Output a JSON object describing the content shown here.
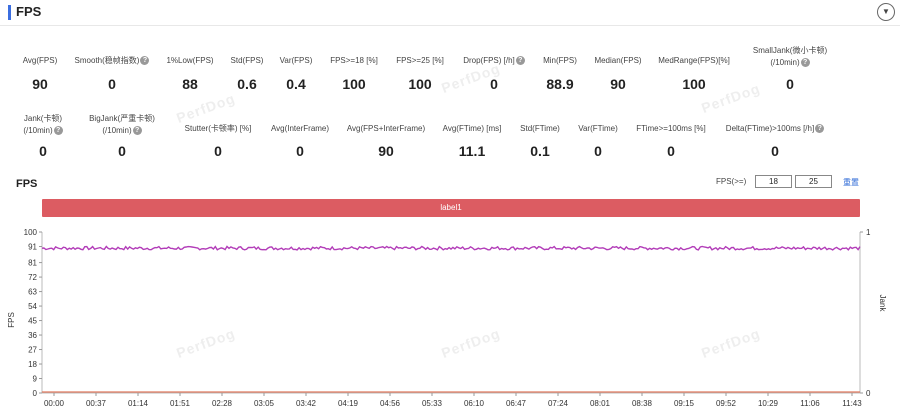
{
  "header": {
    "title": "FPS",
    "collapse_icon": "chevron-down-icon"
  },
  "stats_row1": [
    {
      "label": "Avg(FPS)",
      "value": "90",
      "help": false
    },
    {
      "label": "Smooth(稳帧指数)",
      "value": "0",
      "help": true
    },
    {
      "label": "1%Low(FPS)",
      "value": "88",
      "help": false
    },
    {
      "label": "Std(FPS)",
      "value": "0.6",
      "help": false
    },
    {
      "label": "Var(FPS)",
      "value": "0.4",
      "help": false
    },
    {
      "label": "FPS>=18 [%]",
      "value": "100",
      "help": false
    },
    {
      "label": "FPS>=25 [%]",
      "value": "100",
      "help": false
    },
    {
      "label": "Drop(FPS) [/h]",
      "value": "0",
      "help": true
    },
    {
      "label": "Min(FPS)",
      "value": "88.9",
      "help": false
    },
    {
      "label": "Median(FPS)",
      "value": "90",
      "help": false
    },
    {
      "label": "MedRange(FPS)[%]",
      "value": "100",
      "help": false
    },
    {
      "label": "SmallJank(微小卡顿)",
      "label2": "(/10min)",
      "value": "0",
      "help": true
    }
  ],
  "stats_row2": [
    {
      "label": "Jank(卡顿)",
      "label2": "(/10min)",
      "value": "0",
      "help": true
    },
    {
      "label": "BigJank(严重卡顿)",
      "label2": "(/10min)",
      "value": "0",
      "help": true
    },
    {
      "label": "Stutter(卡顿率) [%]",
      "value": "0",
      "help": false
    },
    {
      "label": "Avg(InterFrame)",
      "value": "0",
      "help": false
    },
    {
      "label": "Avg(FPS+InterFrame)",
      "value": "90",
      "help": false
    },
    {
      "label": "Avg(FTime) [ms]",
      "value": "11.1",
      "help": false
    },
    {
      "label": "Std(FTime)",
      "value": "0.1",
      "help": false
    },
    {
      "label": "Var(FTime)",
      "value": "0",
      "help": false
    },
    {
      "label": "FTime>=100ms [%]",
      "value": "0",
      "help": false
    },
    {
      "label": "Delta(FTime)>100ms [/h]",
      "value": "0",
      "help": true
    }
  ],
  "watermark": "PerfDog",
  "chart_section": {
    "title": "FPS",
    "filter_label": "FPS(>=)",
    "filter_value_1": "18",
    "filter_value_2": "25",
    "reset_label": "重置",
    "label_bar": "label1"
  },
  "chart_data": {
    "type": "line",
    "ylabel": "FPS",
    "y2label": "Jank",
    "y_ticks": [
      "100",
      "91",
      "81",
      "72",
      "63",
      "54",
      "45",
      "36",
      "27",
      "18",
      "9",
      "0"
    ],
    "y2_ticks": [
      "1",
      "0"
    ],
    "ylim": [
      0,
      100
    ],
    "y2lim": [
      0,
      1
    ],
    "x_ticks": [
      "00:00",
      "00:37",
      "01:14",
      "01:51",
      "02:28",
      "03:05",
      "03:42",
      "04:19",
      "04:56",
      "05:33",
      "06:10",
      "06:47",
      "07:24",
      "08:01",
      "08:38",
      "09:15",
      "09:52",
      "10:29",
      "11:06",
      "11:43"
    ],
    "series": [
      {
        "name": "FPS",
        "color": "#b23cb8",
        "baseline": 90,
        "min": 88.9,
        "max": 91
      },
      {
        "name": "Jank",
        "color": "#e07a5f",
        "values_constant": 0
      }
    ]
  }
}
